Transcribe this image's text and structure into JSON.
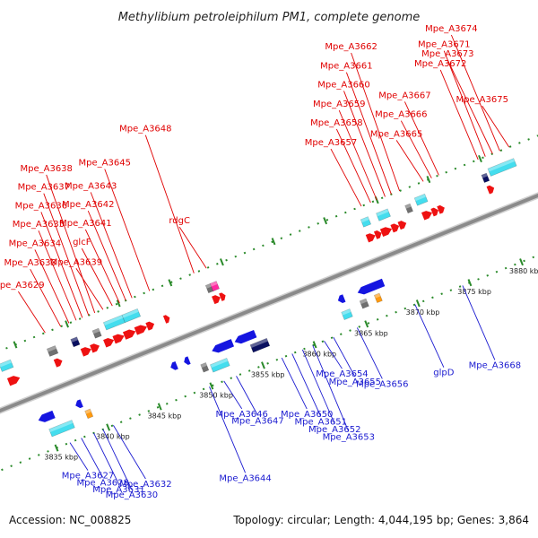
{
  "title": "Methylibium petroleiphilum PM1, complete genome",
  "footer": {
    "accession": "Accession: NC_008825",
    "summary": "Topology: circular; Length: 4,044,195 bp; Genes: 3,864"
  },
  "colors": {
    "backbone": "#8a8a8a",
    "forward_label": "#e00000",
    "reverse_label": "#1a1ad0",
    "forward_gene": "#ee1111",
    "reverse_gene": "#1515e0",
    "rna": "#44ddee",
    "other_gene": "#707070",
    "highlight_gene": "#ff2aa0",
    "navy_gene": "#0a1060",
    "orange_gene": "#ff9a10",
    "tick": "#2a8a2a"
  },
  "scale": {
    "ticks": [
      {
        "kbp": 3835,
        "label": "3835 kbp"
      },
      {
        "kbp": 3840,
        "label": "3840 kbp"
      },
      {
        "kbp": 3845,
        "label": "3845 kbp"
      },
      {
        "kbp": 3850,
        "label": "3850 kbp"
      },
      {
        "kbp": 3855,
        "label": "3855 kbp"
      },
      {
        "kbp": 3860,
        "label": "3860 kbp"
      },
      {
        "kbp": 3865,
        "label": "3865 kbp"
      },
      {
        "kbp": 3870,
        "label": "3870 kbp"
      },
      {
        "kbp": 3875,
        "label": "3875 kbp"
      },
      {
        "kbp": 3880,
        "label": "3880 kbp"
      }
    ]
  },
  "forward_labels": [
    {
      "text": "Mpe_A3629",
      "kbp": 3837.9
    },
    {
      "text": "Mpe_A3633",
      "kbp": 3839.4
    },
    {
      "text": "Mpe_A3634",
      "kbp": 3840.2
    },
    {
      "text": "Mpe_A3635",
      "kbp": 3840.9
    },
    {
      "text": "Mpe_A3636",
      "kbp": 3841.5
    },
    {
      "text": "Mpe_A3637",
      "kbp": 3842.1
    },
    {
      "text": "Mpe_A3638",
      "kbp": 3842.7
    },
    {
      "text": "Mpe_A3639",
      "kbp": 3843.5
    },
    {
      "text": "glcF",
      "kbp": 3844.4
    },
    {
      "text": "Mpe_A3641",
      "kbp": 3845.1
    },
    {
      "text": "Mpe_A3642",
      "kbp": 3845.7
    },
    {
      "text": "Mpe_A3643",
      "kbp": 3846.3
    },
    {
      "text": "Mpe_A3645",
      "kbp": 3848.0
    },
    {
      "text": "Mpe_A3648",
      "kbp": 3852.3
    },
    {
      "text": "rdgC",
      "kbp": 3853.5
    },
    {
      "text": "Mpe_A3657",
      "kbp": 3868.5
    },
    {
      "text": "Mpe_A3658",
      "kbp": 3869.4
    },
    {
      "text": "Mpe_A3659",
      "kbp": 3870.0
    },
    {
      "text": "Mpe_A3660",
      "kbp": 3870.8
    },
    {
      "text": "Mpe_A3661",
      "kbp": 3871.4
    },
    {
      "text": "Mpe_A3662",
      "kbp": 3872.2
    },
    {
      "text": "Mpe_A3665",
      "kbp": 3874.5
    },
    {
      "text": "Mpe_A3666",
      "kbp": 3875.3
    },
    {
      "text": "Mpe_A3667",
      "kbp": 3876.0
    },
    {
      "text": "Mpe_A3672",
      "kbp": 3879.8
    },
    {
      "text": "Mpe_A3671",
      "kbp": 3880.5
    },
    {
      "text": "Mpe_A3673",
      "kbp": 3881.2
    },
    {
      "text": "Mpe_A3674",
      "kbp": 3881.9
    },
    {
      "text": "Mpe_A3675",
      "kbp": 3882.8
    }
  ],
  "reverse_labels": [
    {
      "text": "Mpe_A3627",
      "kbp": 3836.3
    },
    {
      "text": "Mpe_A3628",
      "kbp": 3837.4
    },
    {
      "text": "Mpe_A3631",
      "kbp": 3838.6
    },
    {
      "text": "Mpe_A3630",
      "kbp": 3839.5
    },
    {
      "text": "Mpe_A3632",
      "kbp": 3840.5
    },
    {
      "text": "Mpe_A3644",
      "kbp": 3849.8
    },
    {
      "text": "Mpe_A3646",
      "kbp": 3851.2
    },
    {
      "text": "Mpe_A3647",
      "kbp": 3852.4
    },
    {
      "text": "Mpe_A3650",
      "kbp": 3856.8
    },
    {
      "text": "Mpe_A3651",
      "kbp": 3857.8
    },
    {
      "text": "Mpe_A3652",
      "kbp": 3858.8
    },
    {
      "text": "Mpe_A3653",
      "kbp": 3859.8
    },
    {
      "text": "Mpe_A3654",
      "kbp": 3860.9
    },
    {
      "text": "Mpe_A3655",
      "kbp": 3861.8
    },
    {
      "text": "Mpe_A3656",
      "kbp": 3864.1
    },
    {
      "text": "glpD",
      "kbp": 3869.7
    },
    {
      "text": "Mpe_A3668",
      "kbp": 3874.3
    }
  ],
  "genes": [
    {
      "strand": "+",
      "kind": "rna",
      "start": 3833.0,
      "end": 3834.1
    },
    {
      "strand": "+",
      "kind": "cds",
      "start": 3833.2,
      "end": 3834.3
    },
    {
      "strand": "+",
      "kind": "cds",
      "start": 3837.7,
      "end": 3838.4
    },
    {
      "strand": "+",
      "kind": "other",
      "start": 3837.5,
      "end": 3838.3
    },
    {
      "strand": "+",
      "kind": "navy",
      "start": 3839.8,
      "end": 3840.4
    },
    {
      "strand": "+",
      "kind": "cds",
      "start": 3840.3,
      "end": 3841.2
    },
    {
      "strand": "+",
      "kind": "cds",
      "start": 3841.2,
      "end": 3842.0
    },
    {
      "strand": "+",
      "kind": "other",
      "start": 3841.9,
      "end": 3842.5
    },
    {
      "strand": "+",
      "kind": "cds",
      "start": 3842.5,
      "end": 3843.4
    },
    {
      "strand": "+",
      "kind": "rna",
      "start": 3843.1,
      "end": 3844.9
    },
    {
      "strand": "+",
      "kind": "rna",
      "start": 3844.9,
      "end": 3846.4
    },
    {
      "strand": "+",
      "kind": "cds",
      "start": 3843.4,
      "end": 3844.4
    },
    {
      "strand": "+",
      "kind": "cds",
      "start": 3844.4,
      "end": 3845.5
    },
    {
      "strand": "+",
      "kind": "cds",
      "start": 3845.5,
      "end": 3846.6
    },
    {
      "strand": "+",
      "kind": "cds",
      "start": 3846.6,
      "end": 3847.3
    },
    {
      "strand": "+",
      "kind": "cds",
      "start": 3848.3,
      "end": 3848.8
    },
    {
      "strand": "+",
      "kind": "other",
      "start": 3852.9,
      "end": 3853.3
    },
    {
      "strand": "+",
      "kind": "highlight",
      "start": 3853.3,
      "end": 3853.9
    },
    {
      "strand": "+",
      "kind": "cds",
      "start": 3853.0,
      "end": 3853.7
    },
    {
      "strand": "+",
      "kind": "cds",
      "start": 3853.7,
      "end": 3854.2
    },
    {
      "strand": "+",
      "kind": "rna",
      "start": 3868.0,
      "end": 3868.7
    },
    {
      "strand": "+",
      "kind": "cds",
      "start": 3867.9,
      "end": 3868.7
    },
    {
      "strand": "+",
      "kind": "cds",
      "start": 3868.7,
      "end": 3869.3
    },
    {
      "strand": "+",
      "kind": "rna",
      "start": 3869.5,
      "end": 3870.6
    },
    {
      "strand": "+",
      "kind": "cds",
      "start": 3869.3,
      "end": 3870.3
    },
    {
      "strand": "+",
      "kind": "cds",
      "start": 3870.3,
      "end": 3871.0
    },
    {
      "strand": "+",
      "kind": "cds",
      "start": 3871.0,
      "end": 3871.7
    },
    {
      "strand": "+",
      "kind": "other",
      "start": 3872.3,
      "end": 3872.5
    },
    {
      "strand": "+",
      "kind": "rna",
      "start": 3873.2,
      "end": 3874.2
    },
    {
      "strand": "+",
      "kind": "cds",
      "start": 3873.3,
      "end": 3874.2
    },
    {
      "strand": "+",
      "kind": "cds",
      "start": 3874.2,
      "end": 3874.8
    },
    {
      "strand": "+",
      "kind": "cds",
      "start": 3874.8,
      "end": 3875.4
    },
    {
      "strand": "+",
      "kind": "navy",
      "start": 3879.6,
      "end": 3880.0
    },
    {
      "strand": "+",
      "kind": "cds",
      "start": 3879.6,
      "end": 3880.2
    },
    {
      "strand": "+",
      "kind": "rna",
      "start": 3880.3,
      "end": 3882.8
    },
    {
      "strand": "-",
      "kind": "cds",
      "start": 3834.4,
      "end": 3835.9
    },
    {
      "strand": "-",
      "kind": "cds",
      "start": 3838.0,
      "end": 3838.6
    },
    {
      "strand": "-",
      "kind": "rna",
      "start": 3835.0,
      "end": 3837.2
    },
    {
      "strand": "-",
      "kind": "orange",
      "start": 3838.6,
      "end": 3839.1
    },
    {
      "strand": "-",
      "kind": "cds",
      "start": 3847.2,
      "end": 3847.8
    },
    {
      "strand": "-",
      "kind": "cds",
      "start": 3848.5,
      "end": 3849.0
    },
    {
      "strand": "-",
      "kind": "other",
      "start": 3849.8,
      "end": 3850.3
    },
    {
      "strand": "-",
      "kind": "cds",
      "start": 3851.2,
      "end": 3853.2
    },
    {
      "strand": "-",
      "kind": "cds",
      "start": 3853.4,
      "end": 3855.4
    },
    {
      "strand": "-",
      "kind": "rna",
      "start": 3850.6,
      "end": 3852.2
    },
    {
      "strand": "-",
      "kind": "navy",
      "start": 3854.6,
      "end": 3856.2
    },
    {
      "strand": "-",
      "kind": "cds",
      "start": 3863.4,
      "end": 3864.0
    },
    {
      "strand": "-",
      "kind": "cds",
      "start": 3865.3,
      "end": 3867.8
    },
    {
      "strand": "-",
      "kind": "other",
      "start": 3865.2,
      "end": 3865.8
    },
    {
      "strand": "-",
      "kind": "orange",
      "start": 3866.6,
      "end": 3867.1
    },
    {
      "strand": "-",
      "kind": "rna",
      "start": 3863.3,
      "end": 3864.1
    }
  ]
}
